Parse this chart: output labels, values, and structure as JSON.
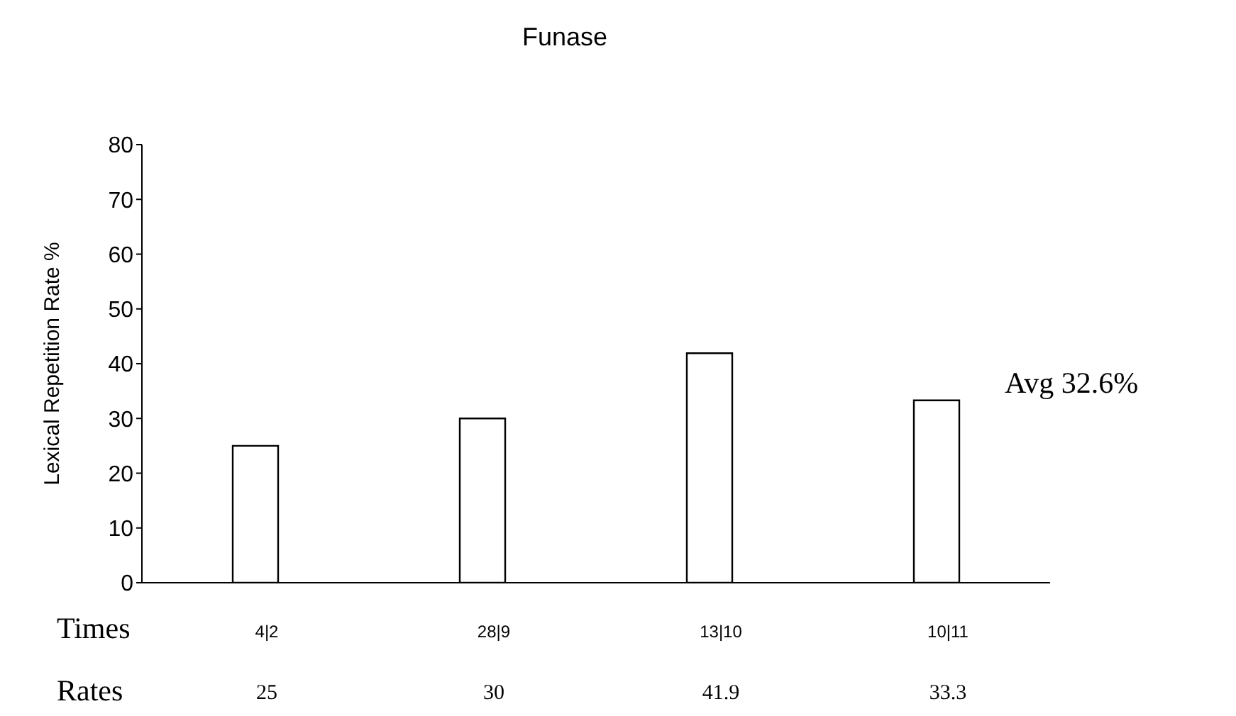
{
  "chart_data": {
    "type": "bar",
    "title": "Funase",
    "xlabel": "Times",
    "ylabel": "Lexical Repetition Rate %",
    "categories": [
      "4|2",
      "28|9",
      "13|10",
      "10|11"
    ],
    "values": [
      25,
      30,
      41.9,
      33.3
    ],
    "color": "#ffffff",
    "ylim": [
      0,
      80
    ],
    "yticks": [
      0,
      10,
      20,
      30,
      40,
      50,
      60,
      70,
      80
    ],
    "data_labels": true,
    "grid": false,
    "legend": false,
    "annotations": [
      "Rates",
      "Avg 32.6%"
    ]
  }
}
